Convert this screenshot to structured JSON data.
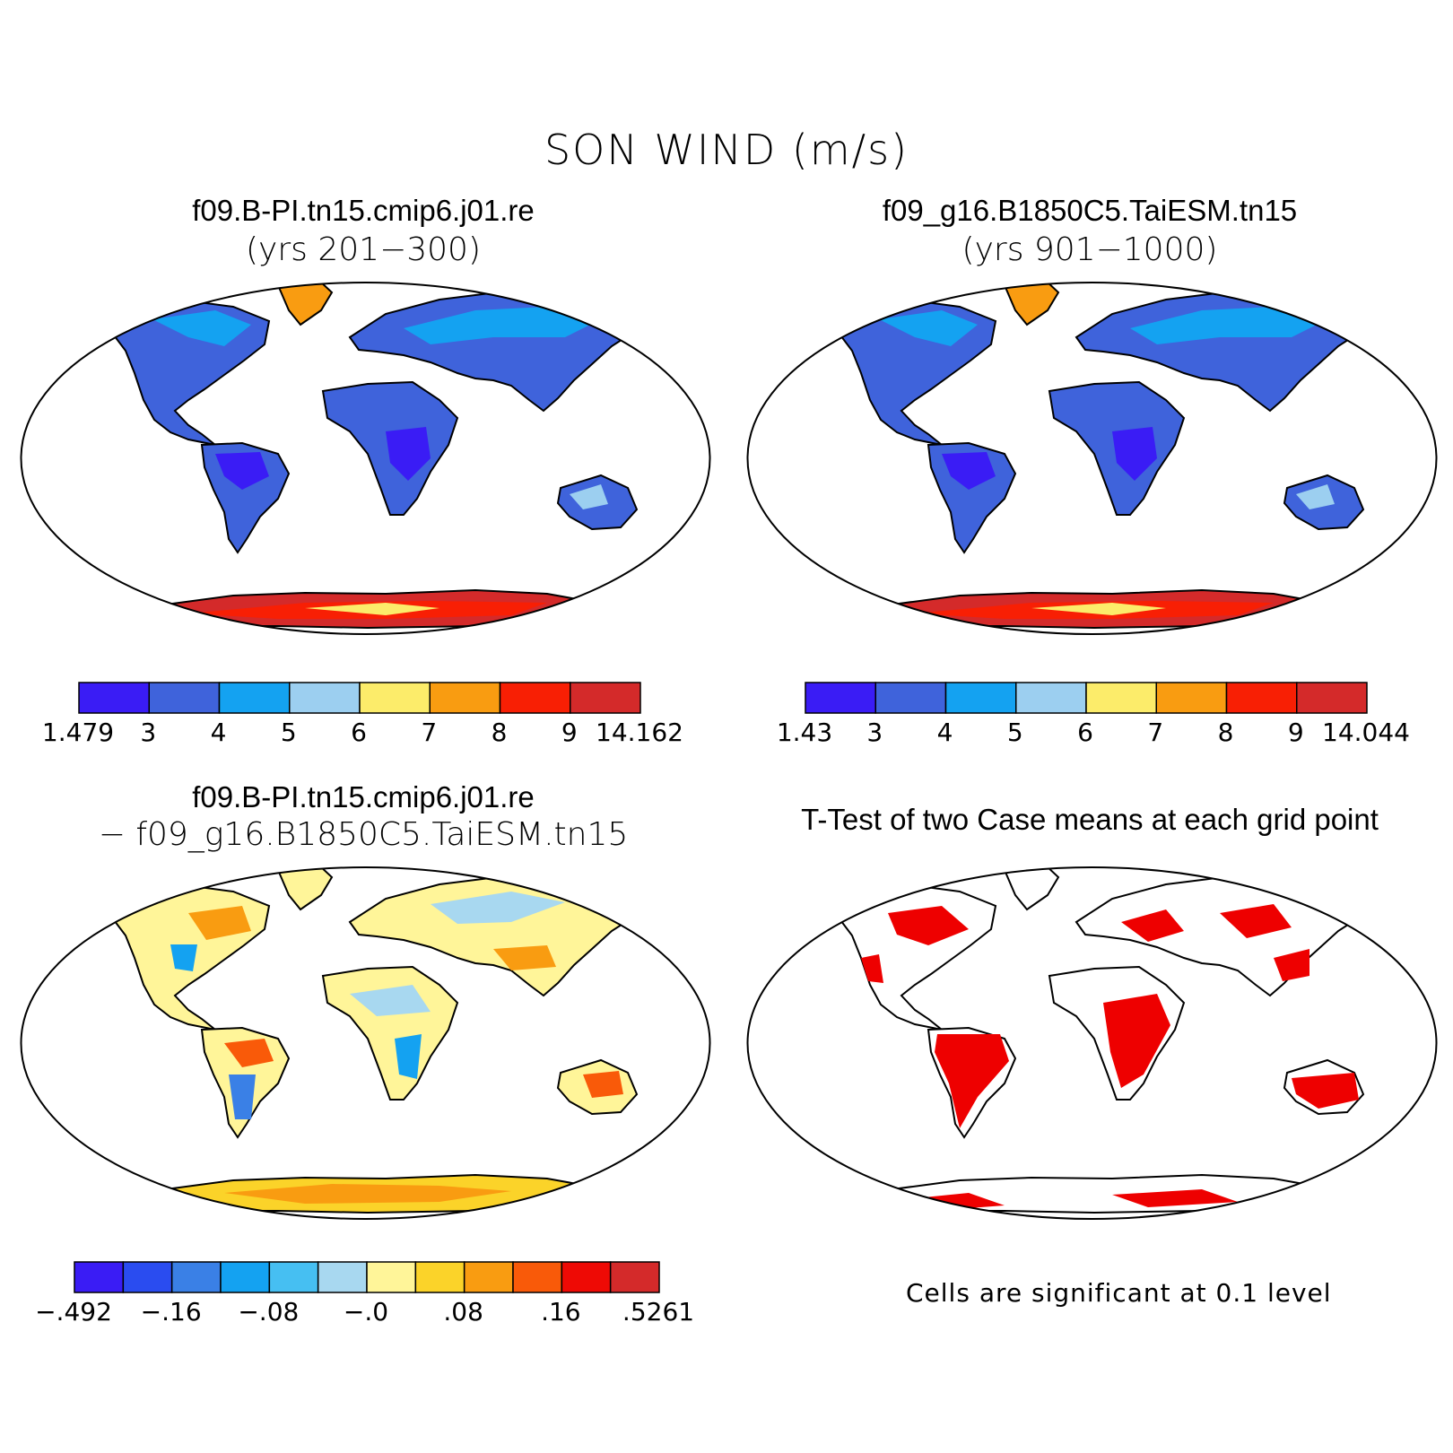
{
  "title": "SON WIND (m/s)",
  "panels": [
    {
      "id": "case1",
      "title": "f09.B-PI.tn15.cmip6.j01.re",
      "subtitle": "(yrs 201−300)",
      "type": "mean",
      "colorbar": {
        "colors": [
          "#3a1cf5",
          "#3f63db",
          "#14a2f1",
          "#9ccff0",
          "#fcec6a",
          "#f99c11",
          "#f81f04",
          "#d42a2a"
        ],
        "labels": [
          "1.479",
          "3",
          "4",
          "5",
          "6",
          "7",
          "8",
          "9",
          "14.162"
        ]
      }
    },
    {
      "id": "case2",
      "title": "f09_g16.B1850C5.TaiESM.tn15",
      "subtitle": "(yrs 901−1000)",
      "type": "mean",
      "colorbar": {
        "colors": [
          "#3a1cf5",
          "#3f63db",
          "#14a2f1",
          "#9ccff0",
          "#fcec6a",
          "#f99c11",
          "#f81f04",
          "#d42a2a"
        ],
        "labels": [
          "1.43",
          "3",
          "4",
          "5",
          "6",
          "7",
          "8",
          "9",
          "14.044"
        ]
      }
    },
    {
      "id": "diff",
      "title": "f09.B-PI.tn15.cmip6.j01.re",
      "subtitle": "− f09_g16.B1850C5.TaiESM.tn15",
      "type": "difference",
      "colorbar": {
        "colors": [
          "#3a1cf5",
          "#2a4cf0",
          "#3a80e6",
          "#14a2f1",
          "#46bff2",
          "#a8d8f0",
          "#fff599",
          "#fbd329",
          "#f99c11",
          "#f95a09",
          "#ee0a05",
          "#d42a2a"
        ],
        "labels": [
          "−.492",
          "−.16",
          "−.08",
          "−.0",
          ".08",
          ".16",
          ".5261"
        ]
      }
    },
    {
      "id": "ttest",
      "title": "T-Test of two Case means at each grid point",
      "subtitle": "",
      "type": "significance",
      "note": "Cells are significant at 0.1 level",
      "significance_color": "#ee0000"
    }
  ]
}
